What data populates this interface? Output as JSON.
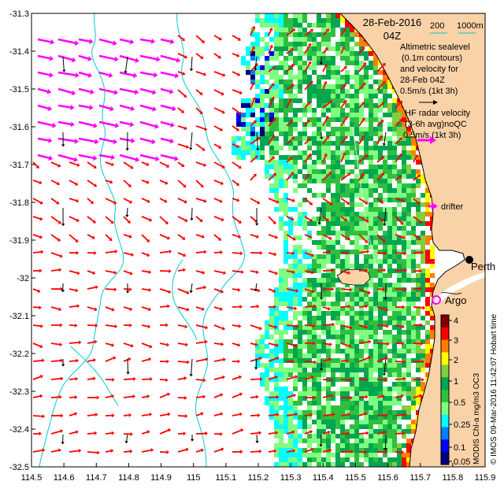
{
  "header": {
    "date": "28-Feb-2016",
    "time": "04Z",
    "depth_200": "200",
    "depth_1000": "1000m"
  },
  "legend": {
    "alt_line1": "Altimetric sealevel",
    "alt_line2": "(0.1m contours)",
    "alt_line3": "and velocity for",
    "alt_line4": "28-Feb 04Z",
    "alt_scale": "0.5m/s (1kt 3h)",
    "hf_line1": "HF radar velocity",
    "hf_line2": "(3-6h avg)noQC",
    "hf_scale": "0.5m/s (1kt 3h)",
    "drifter": "drifter",
    "argo": "Argo"
  },
  "places": {
    "perth": "Perth"
  },
  "side_texts": {
    "chl_label": "MODIS Chl-a mg/m3 OC3",
    "credit": "© IMOS 09-Mar-2016 11:42:07 Hobart time"
  },
  "axes": {
    "x_ticks": [
      "114.5",
      "114.6",
      "114.7",
      "114.8",
      "114.9",
      "115",
      "115.1",
      "115.2",
      "115.3",
      "115.4",
      "115.5",
      "115.6",
      "115.7",
      "115.8",
      "115.9"
    ],
    "y_ticks": [
      "-31.3",
      "-31.4",
      "-31.5",
      "-31.6",
      "-31.7",
      "-31.8",
      "-31.9",
      "-32",
      "-32.1",
      "-32.2",
      "-32.3",
      "-32.4",
      "-32.5"
    ]
  },
  "colorbar": {
    "ticks": [
      "4",
      "3",
      "2",
      "1",
      "0.5",
      "0.25",
      "0.1",
      "0.05"
    ],
    "colors": [
      "#00007f",
      "#0000ff",
      "#007fff",
      "#00ffff",
      "#7fff7f",
      "#2fbf3f",
      "#00a650",
      "#7fcf3f",
      "#ffff00",
      "#ff7f00",
      "#ff0000",
      "#7f0000"
    ]
  },
  "colors": {
    "land": "#fad2a7",
    "hf_arrow": "#ff0000",
    "alt_arrow": "#000000",
    "drifter_arrow": "#ff00ff",
    "isobath": "#00cccc",
    "argo_marker": "#ff00ff"
  }
}
